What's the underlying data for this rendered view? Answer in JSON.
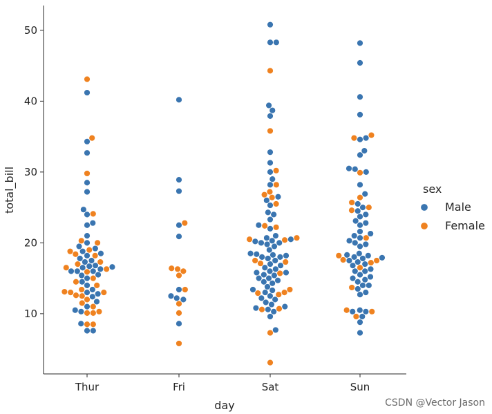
{
  "chart_data": {
    "type": "scatter",
    "kind": "swarm",
    "title": "",
    "xlabel": "day",
    "ylabel": "total_bill",
    "categories": [
      "Thur",
      "Fri",
      "Sat",
      "Sun"
    ],
    "yticks": [
      10,
      20,
      30,
      40,
      50
    ],
    "ylim": [
      1.5,
      53.5
    ],
    "grid": false,
    "legend": {
      "title": "sex",
      "placement": "right"
    },
    "series": [
      {
        "name": "Male",
        "color": "#3a75b0",
        "points": {
          "Thur": [
            7.6,
            7.6,
            8.6,
            10.3,
            10.5,
            11.0,
            11.7,
            12.4,
            12.8,
            13.0,
            13.4,
            14.0,
            14.5,
            15.0,
            15.4,
            15.5,
            16.0,
            16.0,
            16.0,
            16.3,
            16.5,
            16.6,
            16.7,
            16.8,
            17.3,
            17.5,
            17.8,
            18.2,
            18.5,
            18.8,
            19.2,
            19.5,
            20.0,
            21.0,
            22.5,
            22.8,
            24.0,
            24.7,
            27.2,
            28.5,
            32.7,
            34.3,
            41.2
          ],
          "Fri": [
            8.6,
            12.0,
            12.2,
            12.5,
            13.4,
            20.9,
            22.5,
            27.3,
            28.9,
            40.2
          ],
          "Sat": [
            7.7,
            9.6,
            10.3,
            10.6,
            10.8,
            11.0,
            11.3,
            11.6,
            12.0,
            12.2,
            12.5,
            13.0,
            13.3,
            13.4,
            13.8,
            14.3,
            14.5,
            14.7,
            15.0,
            15.0,
            15.4,
            15.5,
            15.8,
            15.8,
            16.0,
            16.3,
            16.5,
            16.8,
            17.0,
            17.5,
            17.8,
            18.0,
            18.0,
            18.2,
            18.3,
            18.4,
            18.5,
            19.0,
            19.5,
            19.8,
            20.0,
            20.0,
            20.2,
            20.3,
            20.5,
            20.7,
            21.0,
            22.0,
            22.5,
            23.3,
            24.0,
            24.3,
            25.3,
            26.0,
            26.5,
            28.2,
            29.0,
            30.0,
            31.3,
            32.8,
            37.9,
            38.7,
            39.4,
            48.3,
            48.3,
            50.8
          ],
          "Sun": [
            7.3,
            8.8,
            9.6,
            10.3,
            10.3,
            10.5,
            12.7,
            13.0,
            13.5,
            14.0,
            14.0,
            14.5,
            14.8,
            15.0,
            15.2,
            15.5,
            16.0,
            16.0,
            16.3,
            16.8,
            17.0,
            17.3,
            17.5,
            17.8,
            17.9,
            18.0,
            18.2,
            18.3,
            18.5,
            19.5,
            19.8,
            20.0,
            20.3,
            20.7,
            21.0,
            21.3,
            21.6,
            22.5,
            22.8,
            23.1,
            23.7,
            24.0,
            24.5,
            25.0,
            25.5,
            26.9,
            28.2,
            30.0,
            30.4,
            30.5,
            32.4,
            33.0,
            34.6,
            34.8,
            38.1,
            40.6,
            45.4,
            48.2
          ]
        }
      },
      {
        "name": "Female",
        "color": "#ef8220",
        "points": {
          "Thur": [
            8.5,
            8.5,
            10.1,
            10.1,
            10.3,
            11.0,
            11.5,
            12.0,
            12.5,
            12.6,
            13.0,
            13.0,
            13.1,
            13.4,
            14.0,
            14.5,
            15.0,
            15.9,
            16.3,
            16.5,
            17.0,
            17.3,
            18.2,
            18.4,
            18.8,
            19.0,
            20.0,
            20.3,
            24.1,
            29.8,
            34.8,
            43.1
          ],
          "Fri": [
            5.8,
            10.1,
            11.4,
            13.4,
            15.4,
            16.0,
            16.3,
            16.4,
            22.8
          ],
          "Sat": [
            3.1,
            7.3,
            10.6,
            10.7,
            12.7,
            12.9,
            13.0,
            13.4,
            15.7,
            17.1,
            17.3,
            17.5,
            20.4,
            20.5,
            20.7,
            22.2,
            22.4,
            25.5,
            26.4,
            26.8,
            27.2,
            28.2,
            30.2,
            35.8,
            44.3
          ],
          "Sun": [
            9.6,
            10.3,
            10.5,
            13.7,
            16.5,
            17.2,
            17.5,
            17.6,
            18.2,
            20.7,
            24.6,
            25.0,
            25.7,
            26.4,
            29.9,
            34.8,
            35.2
          ]
        }
      }
    ]
  },
  "watermark": "CSDN @Vector Jason"
}
